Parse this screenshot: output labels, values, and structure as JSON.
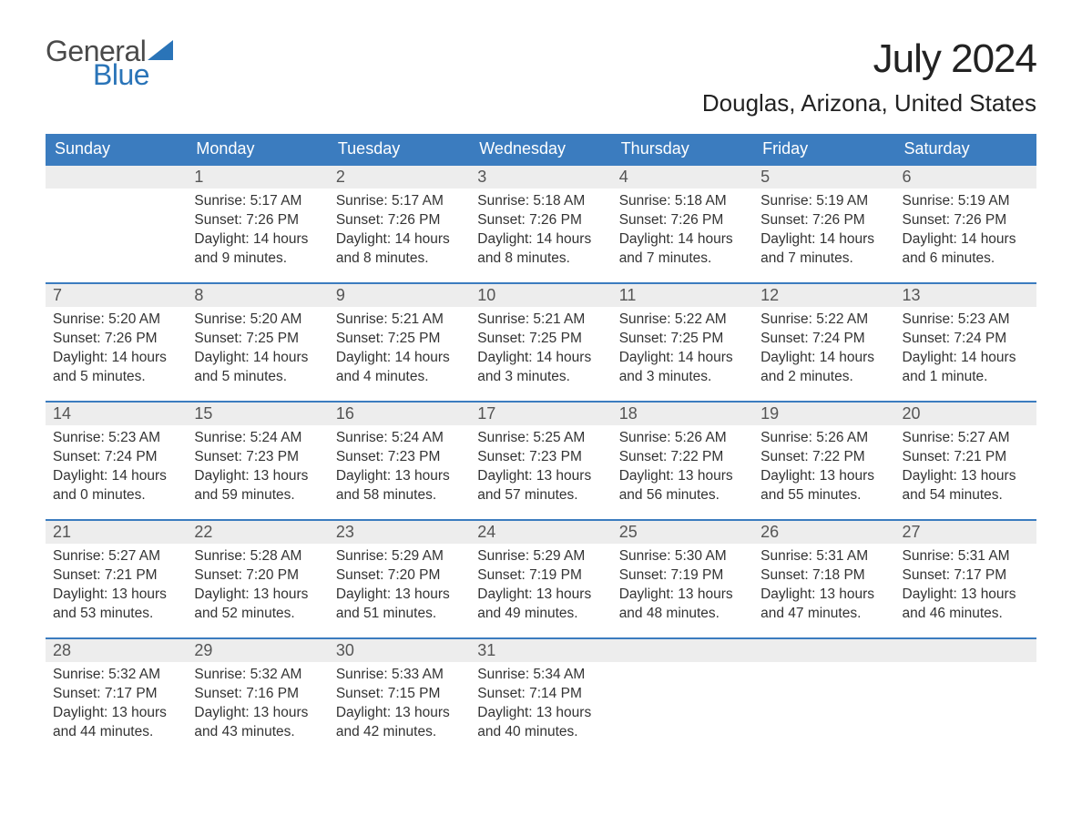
{
  "logo": {
    "text_top": "General",
    "text_bottom": "Blue"
  },
  "title": "July 2024",
  "location": "Douglas, Arizona, United States",
  "colors": {
    "header_bg": "#3b7cbf",
    "header_text": "#ffffff",
    "row_border": "#3b7cbf",
    "daynum_bg": "#ededed",
    "text": "#333333",
    "logo_gray": "#4a4a4a",
    "logo_blue": "#2a74b8",
    "page_bg": "#ffffff"
  },
  "fonts": {
    "title_size_pt": 33,
    "location_size_pt": 20,
    "weekday_size_pt": 14,
    "daynum_size_pt": 14,
    "body_size_pt": 12,
    "logo_size_pt": 24
  },
  "weekdays": [
    "Sunday",
    "Monday",
    "Tuesday",
    "Wednesday",
    "Thursday",
    "Friday",
    "Saturday"
  ],
  "weeks": [
    [
      null,
      {
        "n": "1",
        "sunrise": "Sunrise: 5:17 AM",
        "sunset": "Sunset: 7:26 PM",
        "daylight": "Daylight: 14 hours and 9 minutes."
      },
      {
        "n": "2",
        "sunrise": "Sunrise: 5:17 AM",
        "sunset": "Sunset: 7:26 PM",
        "daylight": "Daylight: 14 hours and 8 minutes."
      },
      {
        "n": "3",
        "sunrise": "Sunrise: 5:18 AM",
        "sunset": "Sunset: 7:26 PM",
        "daylight": "Daylight: 14 hours and 8 minutes."
      },
      {
        "n": "4",
        "sunrise": "Sunrise: 5:18 AM",
        "sunset": "Sunset: 7:26 PM",
        "daylight": "Daylight: 14 hours and 7 minutes."
      },
      {
        "n": "5",
        "sunrise": "Sunrise: 5:19 AM",
        "sunset": "Sunset: 7:26 PM",
        "daylight": "Daylight: 14 hours and 7 minutes."
      },
      {
        "n": "6",
        "sunrise": "Sunrise: 5:19 AM",
        "sunset": "Sunset: 7:26 PM",
        "daylight": "Daylight: 14 hours and 6 minutes."
      }
    ],
    [
      {
        "n": "7",
        "sunrise": "Sunrise: 5:20 AM",
        "sunset": "Sunset: 7:26 PM",
        "daylight": "Daylight: 14 hours and 5 minutes."
      },
      {
        "n": "8",
        "sunrise": "Sunrise: 5:20 AM",
        "sunset": "Sunset: 7:25 PM",
        "daylight": "Daylight: 14 hours and 5 minutes."
      },
      {
        "n": "9",
        "sunrise": "Sunrise: 5:21 AM",
        "sunset": "Sunset: 7:25 PM",
        "daylight": "Daylight: 14 hours and 4 minutes."
      },
      {
        "n": "10",
        "sunrise": "Sunrise: 5:21 AM",
        "sunset": "Sunset: 7:25 PM",
        "daylight": "Daylight: 14 hours and 3 minutes."
      },
      {
        "n": "11",
        "sunrise": "Sunrise: 5:22 AM",
        "sunset": "Sunset: 7:25 PM",
        "daylight": "Daylight: 14 hours and 3 minutes."
      },
      {
        "n": "12",
        "sunrise": "Sunrise: 5:22 AM",
        "sunset": "Sunset: 7:24 PM",
        "daylight": "Daylight: 14 hours and 2 minutes."
      },
      {
        "n": "13",
        "sunrise": "Sunrise: 5:23 AM",
        "sunset": "Sunset: 7:24 PM",
        "daylight": "Daylight: 14 hours and 1 minute."
      }
    ],
    [
      {
        "n": "14",
        "sunrise": "Sunrise: 5:23 AM",
        "sunset": "Sunset: 7:24 PM",
        "daylight": "Daylight: 14 hours and 0 minutes."
      },
      {
        "n": "15",
        "sunrise": "Sunrise: 5:24 AM",
        "sunset": "Sunset: 7:23 PM",
        "daylight": "Daylight: 13 hours and 59 minutes."
      },
      {
        "n": "16",
        "sunrise": "Sunrise: 5:24 AM",
        "sunset": "Sunset: 7:23 PM",
        "daylight": "Daylight: 13 hours and 58 minutes."
      },
      {
        "n": "17",
        "sunrise": "Sunrise: 5:25 AM",
        "sunset": "Sunset: 7:23 PM",
        "daylight": "Daylight: 13 hours and 57 minutes."
      },
      {
        "n": "18",
        "sunrise": "Sunrise: 5:26 AM",
        "sunset": "Sunset: 7:22 PM",
        "daylight": "Daylight: 13 hours and 56 minutes."
      },
      {
        "n": "19",
        "sunrise": "Sunrise: 5:26 AM",
        "sunset": "Sunset: 7:22 PM",
        "daylight": "Daylight: 13 hours and 55 minutes."
      },
      {
        "n": "20",
        "sunrise": "Sunrise: 5:27 AM",
        "sunset": "Sunset: 7:21 PM",
        "daylight": "Daylight: 13 hours and 54 minutes."
      }
    ],
    [
      {
        "n": "21",
        "sunrise": "Sunrise: 5:27 AM",
        "sunset": "Sunset: 7:21 PM",
        "daylight": "Daylight: 13 hours and 53 minutes."
      },
      {
        "n": "22",
        "sunrise": "Sunrise: 5:28 AM",
        "sunset": "Sunset: 7:20 PM",
        "daylight": "Daylight: 13 hours and 52 minutes."
      },
      {
        "n": "23",
        "sunrise": "Sunrise: 5:29 AM",
        "sunset": "Sunset: 7:20 PM",
        "daylight": "Daylight: 13 hours and 51 minutes."
      },
      {
        "n": "24",
        "sunrise": "Sunrise: 5:29 AM",
        "sunset": "Sunset: 7:19 PM",
        "daylight": "Daylight: 13 hours and 49 minutes."
      },
      {
        "n": "25",
        "sunrise": "Sunrise: 5:30 AM",
        "sunset": "Sunset: 7:19 PM",
        "daylight": "Daylight: 13 hours and 48 minutes."
      },
      {
        "n": "26",
        "sunrise": "Sunrise: 5:31 AM",
        "sunset": "Sunset: 7:18 PM",
        "daylight": "Daylight: 13 hours and 47 minutes."
      },
      {
        "n": "27",
        "sunrise": "Sunrise: 5:31 AM",
        "sunset": "Sunset: 7:17 PM",
        "daylight": "Daylight: 13 hours and 46 minutes."
      }
    ],
    [
      {
        "n": "28",
        "sunrise": "Sunrise: 5:32 AM",
        "sunset": "Sunset: 7:17 PM",
        "daylight": "Daylight: 13 hours and 44 minutes."
      },
      {
        "n": "29",
        "sunrise": "Sunrise: 5:32 AM",
        "sunset": "Sunset: 7:16 PM",
        "daylight": "Daylight: 13 hours and 43 minutes."
      },
      {
        "n": "30",
        "sunrise": "Sunrise: 5:33 AM",
        "sunset": "Sunset: 7:15 PM",
        "daylight": "Daylight: 13 hours and 42 minutes."
      },
      {
        "n": "31",
        "sunrise": "Sunrise: 5:34 AM",
        "sunset": "Sunset: 7:14 PM",
        "daylight": "Daylight: 13 hours and 40 minutes."
      },
      null,
      null,
      null
    ]
  ]
}
